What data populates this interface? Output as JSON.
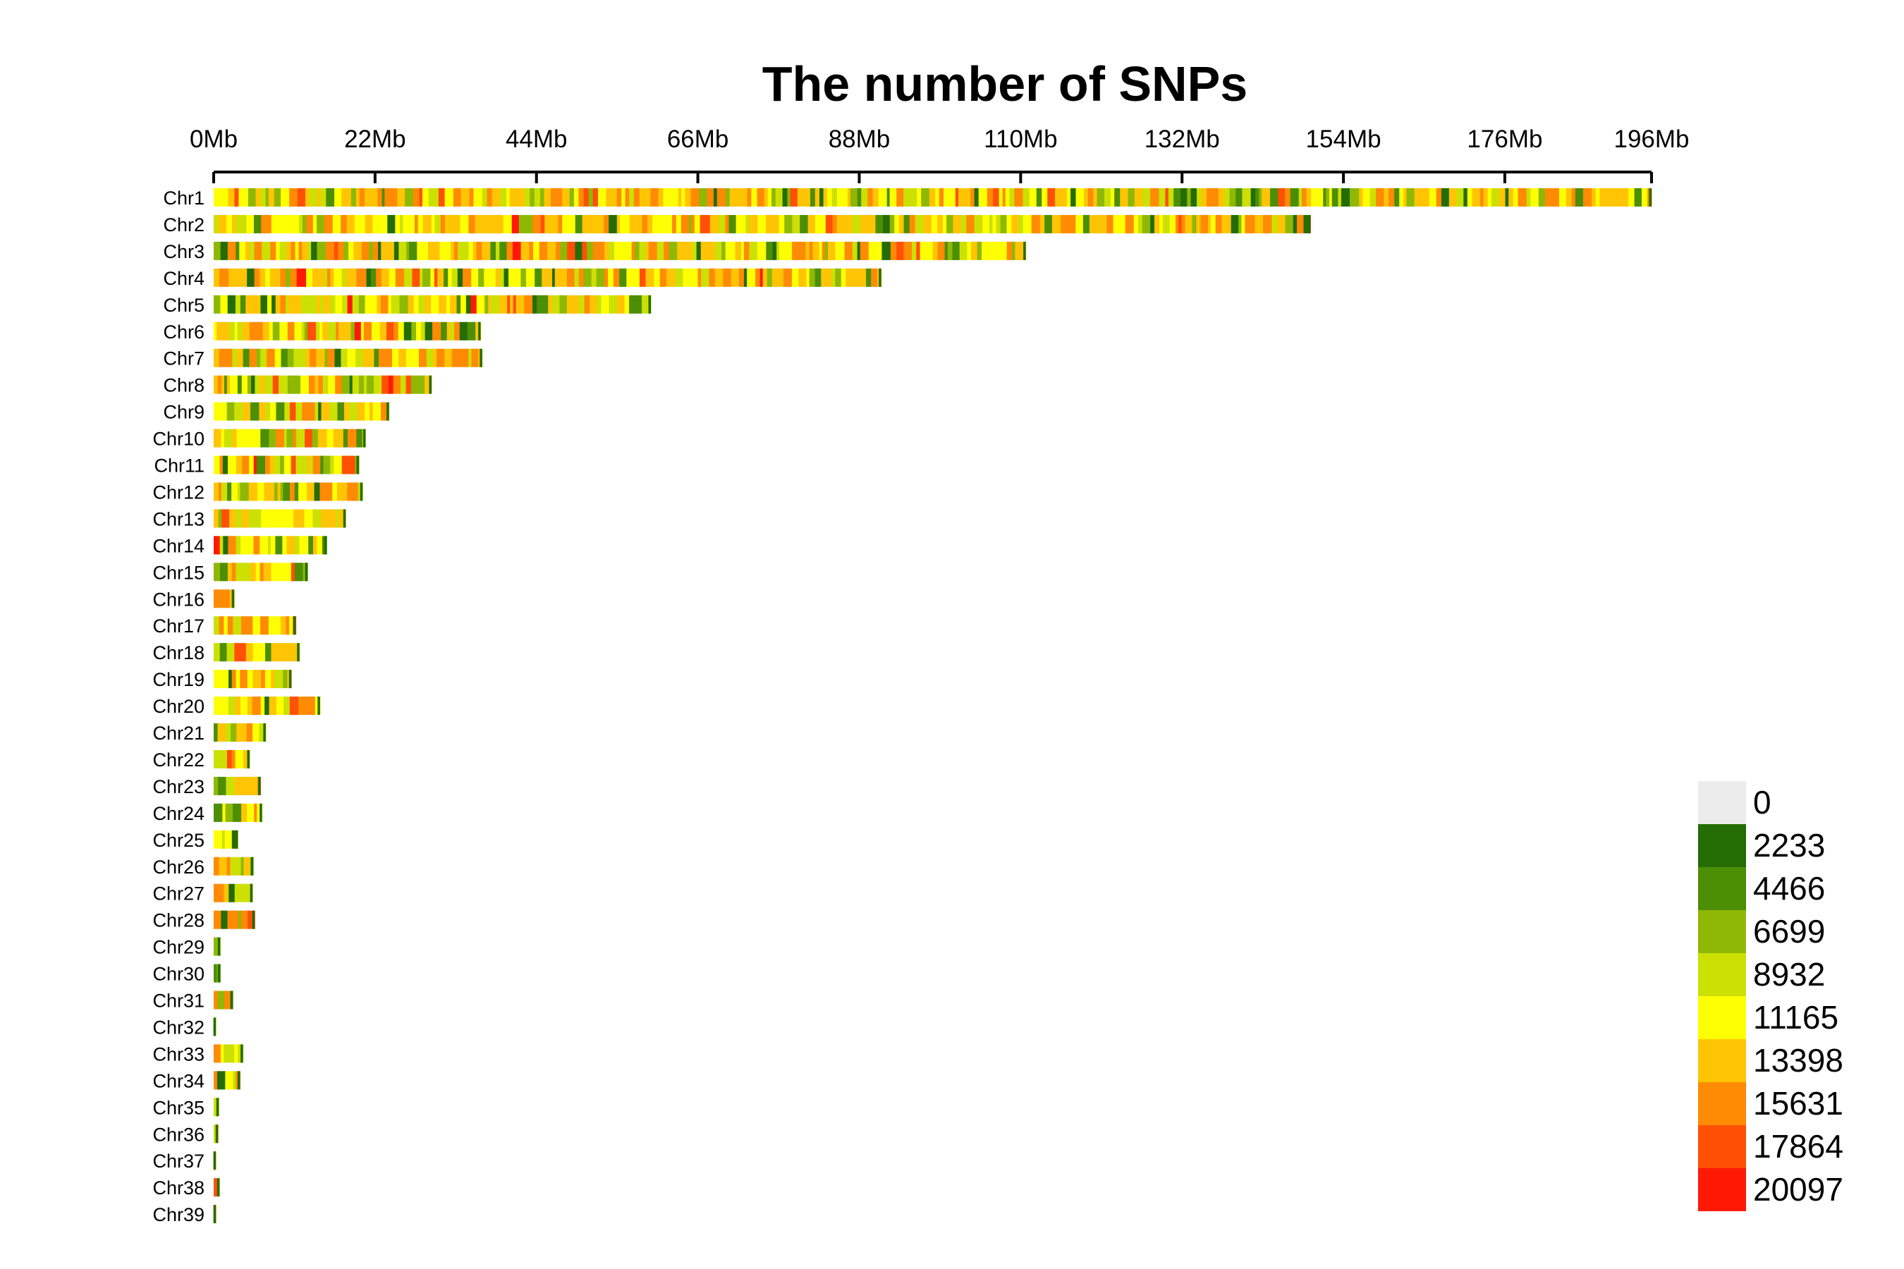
{
  "chart_data": {
    "type": "heatmap",
    "title": "The number of SNPs",
    "x_ticks": [
      "0Mb",
      "22Mb",
      "44Mb",
      "66Mb",
      "88Mb",
      "110Mb",
      "132Mb",
      "154Mb",
      "176Mb",
      "196Mb"
    ],
    "x_tick_values_mb": [
      0,
      22,
      44,
      66,
      88,
      110,
      132,
      154,
      176,
      196
    ],
    "xlim_mb": [
      0,
      196
    ],
    "chromosomes": [
      {
        "name": "Chr1",
        "length_mb": 196.0
      },
      {
        "name": "Chr2",
        "length_mb": 149.5
      },
      {
        "name": "Chr3",
        "length_mb": 110.7
      },
      {
        "name": "Chr4",
        "length_mb": 91.0
      },
      {
        "name": "Chr5",
        "length_mb": 59.6
      },
      {
        "name": "Chr6",
        "length_mb": 36.4
      },
      {
        "name": "Chr7",
        "length_mb": 36.6
      },
      {
        "name": "Chr8",
        "length_mb": 29.7
      },
      {
        "name": "Chr9",
        "length_mb": 23.9
      },
      {
        "name": "Chr10",
        "length_mb": 20.7
      },
      {
        "name": "Chr11",
        "length_mb": 19.8
      },
      {
        "name": "Chr12",
        "length_mb": 20.3
      },
      {
        "name": "Chr13",
        "length_mb": 18.0
      },
      {
        "name": "Chr14",
        "length_mb": 15.4
      },
      {
        "name": "Chr15",
        "length_mb": 12.8
      },
      {
        "name": "Chr16",
        "length_mb": 2.8
      },
      {
        "name": "Chr17",
        "length_mb": 11.2
      },
      {
        "name": "Chr18",
        "length_mb": 11.7
      },
      {
        "name": "Chr19",
        "length_mb": 10.6
      },
      {
        "name": "Chr20",
        "length_mb": 14.5
      },
      {
        "name": "Chr21",
        "length_mb": 7.1
      },
      {
        "name": "Chr22",
        "length_mb": 4.9
      },
      {
        "name": "Chr23",
        "length_mb": 6.4
      },
      {
        "name": "Chr24",
        "length_mb": 6.6
      },
      {
        "name": "Chr25",
        "length_mb": 3.3
      },
      {
        "name": "Chr26",
        "length_mb": 5.4
      },
      {
        "name": "Chr27",
        "length_mb": 5.3
      },
      {
        "name": "Chr28",
        "length_mb": 5.6
      },
      {
        "name": "Chr29",
        "length_mb": 0.9
      },
      {
        "name": "Chr30",
        "length_mb": 0.9
      },
      {
        "name": "Chr31",
        "length_mb": 2.6
      },
      {
        "name": "Chr32",
        "length_mb": 0.3
      },
      {
        "name": "Chr33",
        "length_mb": 4.0
      },
      {
        "name": "Chr34",
        "length_mb": 3.6
      },
      {
        "name": "Chr35",
        "length_mb": 0.7
      },
      {
        "name": "Chr36",
        "length_mb": 0.6
      },
      {
        "name": "Chr37",
        "length_mb": 0.3
      },
      {
        "name": "Chr38",
        "length_mb": 0.8
      },
      {
        "name": "Chr39",
        "length_mb": 0.3
      }
    ],
    "legend": {
      "position": "bottom-right",
      "levels": [
        {
          "label": "0",
          "color": "#ececec"
        },
        {
          "label": "2233",
          "color": "#246c04"
        },
        {
          "label": "4466",
          "color": "#4c8e04"
        },
        {
          "label": "6699",
          "color": "#8eb804"
        },
        {
          "label": "8932",
          "color": "#cce004"
        },
        {
          "label": "11165",
          "color": "#ffff04"
        },
        {
          "label": "13398",
          "color": "#ffc404"
        },
        {
          "label": "15631",
          "color": "#ff8a04"
        },
        {
          "label": "17864",
          "color": "#ff5004"
        },
        {
          "label": "20097",
          "color": "#ff1904"
        }
      ]
    },
    "grid": false
  }
}
